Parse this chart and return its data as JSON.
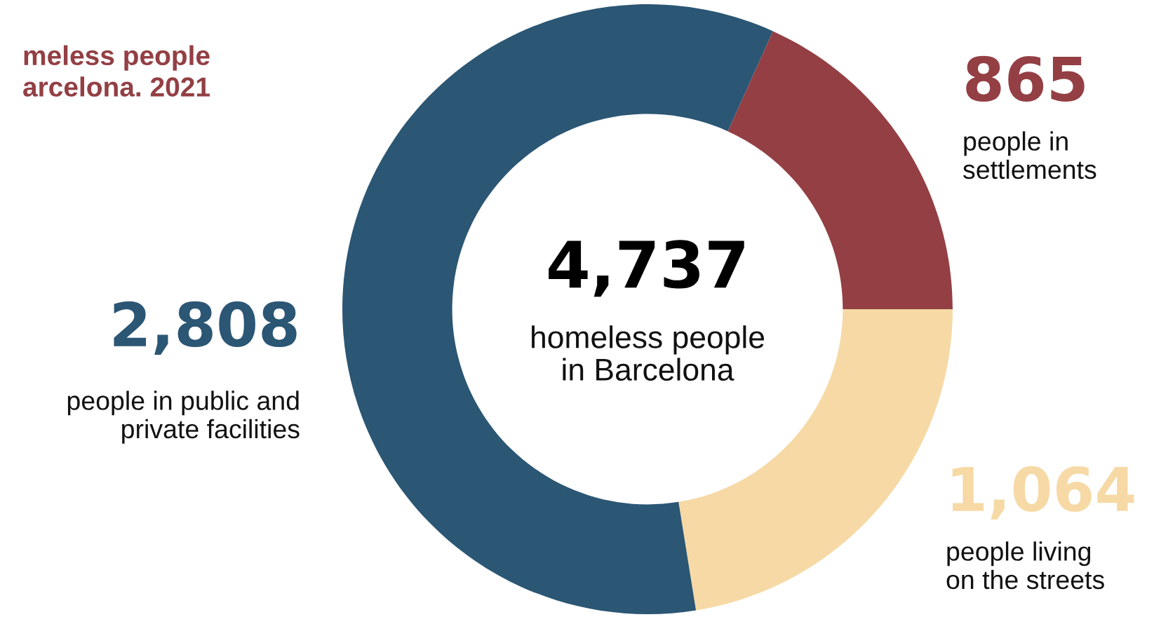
{
  "chart_data": {
    "type": "donut",
    "title": "meless people\narcelona. 2021",
    "categories": [
      "people in\nsettlements",
      "people living\non the streets",
      "people in public and\nprivate facilities"
    ],
    "values": [
      865,
      1064,
      2808
    ],
    "colors": [
      "#933f44",
      "#f6d9a5",
      "#2b5674"
    ],
    "value_labels": [
      "865",
      "1,064",
      "2,808"
    ],
    "annotations": [
      "4,737",
      "homeless people\nin Barcelona"
    ]
  }
}
